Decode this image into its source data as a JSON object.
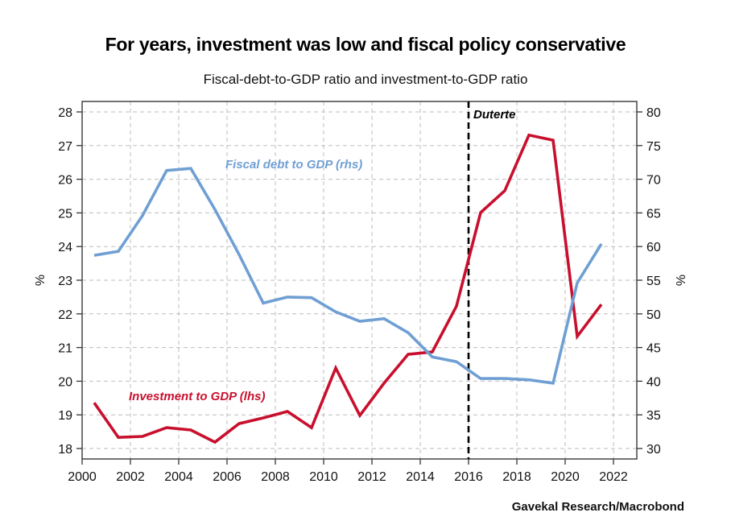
{
  "chart_data": {
    "type": "line",
    "title": "For years, investment was low and fiscal policy conservative",
    "subtitle": "Fiscal-debt-to-GDP ratio and investment-to-GDP ratio",
    "source": "Gavekal Research/Macrobond",
    "xlabel": "",
    "ylabel_left": "%",
    "ylabel_right": "%",
    "xlim": [
      2000,
      2023
    ],
    "ylim_left": [
      17.7,
      28.3
    ],
    "ylim_right": [
      28.5,
      81.5
    ],
    "grid": true,
    "x_ticks": [
      2000,
      2002,
      2004,
      2006,
      2008,
      2010,
      2012,
      2014,
      2016,
      2018,
      2020,
      2022
    ],
    "x_tick_labels": [
      "2000",
      "2002",
      "2004",
      "2006",
      "2008",
      "2010",
      "2012",
      "2014",
      "2016",
      "2018",
      "2020",
      "2022"
    ],
    "y_left_ticks": [
      18,
      19,
      20,
      21,
      22,
      23,
      24,
      25,
      26,
      27,
      28
    ],
    "y_left_tick_labels": [
      "18",
      "19",
      "20",
      "21",
      "22",
      "23",
      "24",
      "25",
      "26",
      "27",
      "28"
    ],
    "y_right_ticks": [
      30,
      35,
      40,
      45,
      50,
      55,
      60,
      65,
      70,
      75,
      80
    ],
    "y_right_tick_labels": [
      "30",
      "35",
      "40",
      "45",
      "50",
      "55",
      "60",
      "65",
      "70",
      "75",
      "80"
    ],
    "x": [
      2000.5,
      2001.5,
      2002.5,
      2003.5,
      2004.5,
      2005.5,
      2006.5,
      2007.5,
      2008.5,
      2009.5,
      2010.5,
      2011.5,
      2012.5,
      2013.5,
      2014.5,
      2015.5,
      2016.5,
      2017.5,
      2018.5,
      2019.5,
      2020.5,
      2021.5
    ],
    "series": [
      {
        "name": "Investment to GDP (lhs)",
        "axis": "left",
        "color": "#c8102e",
        "values": [
          19.36,
          18.33,
          18.36,
          18.62,
          18.55,
          18.19,
          18.74,
          18.91,
          19.1,
          18.62,
          20.39,
          18.98,
          19.94,
          20.8,
          20.87,
          22.23,
          25.01,
          25.66,
          27.31,
          27.16,
          21.33,
          22.28
        ]
      },
      {
        "name": "Fiscal debt to GDP (rhs)",
        "axis": "right",
        "color": "#6f9fd3",
        "values": [
          58.7,
          59.3,
          64.6,
          71.3,
          71.6,
          65.5,
          58.8,
          51.6,
          52.5,
          52.4,
          50.3,
          48.9,
          49.3,
          47.2,
          43.6,
          42.9,
          40.4,
          40.4,
          40.2,
          39.7,
          54.6,
          60.4
        ]
      }
    ],
    "annotations": [
      {
        "type": "vline",
        "x": 2016,
        "label": "Duterte",
        "style": "dashed",
        "color": "#000000"
      }
    ],
    "series_label_positions": "inline"
  }
}
